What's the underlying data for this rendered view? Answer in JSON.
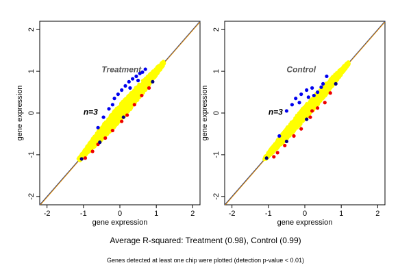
{
  "figure": {
    "caption": "Average R-squared: Treatment (0.98), Control (0.99)",
    "footnote": "Genes detected at least one chip were plotted (detection p-value < 0.01)"
  },
  "chart_data": [
    {
      "type": "scatter",
      "title": "Treatment",
      "annotation": "n=3",
      "xlabel": "gene expression",
      "ylabel": "gene expression",
      "xlim": [
        -2.2,
        2.2
      ],
      "ylim": [
        -2.2,
        2.2
      ],
      "xticks": [
        -2,
        -1,
        0,
        1,
        2
      ],
      "yticks": [
        -2,
        -1,
        0,
        1,
        2
      ],
      "grid": false,
      "diagonal_line": {
        "from": [
          -2.2,
          -2.2
        ],
        "to": [
          2.2,
          2.2
        ],
        "colors": [
          "#1f3a8a",
          "#e08a00"
        ]
      },
      "cloud": {
        "x_range": [
          -1.1,
          1.2
        ],
        "spread": 0.12
      },
      "series": [
        {
          "color": "#ffff00",
          "points": [
            [
              -1.0,
              -1.02
            ],
            [
              -0.9,
              -0.88
            ],
            [
              -0.8,
              -0.79
            ],
            [
              -0.7,
              -0.72
            ],
            [
              -0.6,
              -0.58
            ],
            [
              -0.5,
              -0.51
            ],
            [
              -0.4,
              -0.38
            ],
            [
              -0.3,
              -0.31
            ],
            [
              -0.2,
              -0.18
            ],
            [
              -0.1,
              -0.12
            ],
            [
              0.0,
              0.02
            ],
            [
              0.1,
              0.08
            ],
            [
              0.2,
              0.22
            ],
            [
              0.3,
              0.28
            ],
            [
              0.4,
              0.41
            ],
            [
              0.5,
              0.49
            ],
            [
              0.6,
              0.62
            ],
            [
              0.7,
              0.69
            ],
            [
              0.8,
              0.81
            ],
            [
              0.9,
              0.92
            ],
            [
              1.0,
              0.98
            ],
            [
              1.1,
              1.1
            ]
          ]
        },
        {
          "color": "#0000ee",
          "points": [
            [
              -0.15,
              0.35
            ],
            [
              0.05,
              0.55
            ],
            [
              0.25,
              0.75
            ],
            [
              0.45,
              0.88
            ],
            [
              0.55,
              0.95
            ],
            [
              0.35,
              0.82
            ],
            [
              -0.3,
              0.1
            ],
            [
              0.62,
              0.98
            ],
            [
              0.15,
              0.65
            ],
            [
              -0.45,
              -0.1
            ],
            [
              0.7,
              1.05
            ],
            [
              -0.6,
              -0.35
            ],
            [
              0.5,
              0.78
            ],
            [
              -0.05,
              0.45
            ],
            [
              0.28,
              0.6
            ],
            [
              -0.2,
              0.2
            ]
          ]
        },
        {
          "color": "#ee0000",
          "points": [
            [
              -0.95,
              -1.08
            ],
            [
              -0.6,
              -0.75
            ],
            [
              -0.4,
              -0.6
            ],
            [
              -0.2,
              -0.42
            ],
            [
              0.2,
              -0.05
            ],
            [
              0.4,
              0.2
            ],
            [
              0.6,
              0.42
            ],
            [
              -0.75,
              -0.92
            ],
            [
              0.05,
              -0.2
            ],
            [
              0.8,
              0.6
            ]
          ]
        },
        {
          "color": "#000080",
          "points": [
            [
              -1.05,
              -1.1
            ],
            [
              -0.55,
              -0.7
            ],
            [
              0.1,
              -0.1
            ],
            [
              0.9,
              0.75
            ]
          ]
        }
      ]
    },
    {
      "type": "scatter",
      "title": "Control",
      "annotation": "n=3",
      "xlabel": "gene expression",
      "ylabel": "gene expression",
      "xlim": [
        -2.2,
        2.2
      ],
      "ylim": [
        -2.2,
        2.2
      ],
      "xticks": [
        -2,
        -1,
        0,
        1,
        2
      ],
      "yticks": [
        -2,
        -1,
        0,
        1,
        2
      ],
      "grid": false,
      "diagonal_line": {
        "from": [
          -2.2,
          -2.2
        ],
        "to": [
          2.2,
          2.2
        ],
        "colors": [
          "#1f3a8a",
          "#e08a00"
        ]
      },
      "cloud": {
        "x_range": [
          -1.1,
          1.2
        ],
        "spread": 0.1
      },
      "series": [
        {
          "color": "#ffff00",
          "points": [
            [
              -1.0,
              -1.0
            ],
            [
              -0.9,
              -0.9
            ],
            [
              -0.8,
              -0.8
            ],
            [
              -0.7,
              -0.71
            ],
            [
              -0.6,
              -0.6
            ],
            [
              -0.5,
              -0.5
            ],
            [
              -0.4,
              -0.4
            ],
            [
              -0.3,
              -0.3
            ],
            [
              -0.2,
              -0.2
            ],
            [
              -0.1,
              -0.1
            ],
            [
              0.0,
              0.0
            ],
            [
              0.1,
              0.1
            ],
            [
              0.2,
              0.2
            ],
            [
              0.3,
              0.3
            ],
            [
              0.4,
              0.4
            ],
            [
              0.5,
              0.5
            ],
            [
              0.6,
              0.6
            ],
            [
              0.7,
              0.7
            ],
            [
              0.8,
              0.8
            ],
            [
              0.9,
              0.9
            ],
            [
              1.0,
              1.0
            ],
            [
              1.1,
              1.1
            ]
          ]
        },
        {
          "color": "#0000ee",
          "points": [
            [
              -0.25,
              0.35
            ],
            [
              -0.1,
              0.45
            ],
            [
              0.05,
              0.55
            ],
            [
              0.2,
              0.6
            ],
            [
              0.35,
              0.5
            ],
            [
              -0.35,
              0.2
            ],
            [
              0.1,
              0.38
            ],
            [
              -0.5,
              0.05
            ],
            [
              0.45,
              0.62
            ],
            [
              -0.15,
              0.25
            ],
            [
              0.5,
              0.7
            ],
            [
              -0.7,
              -0.55
            ],
            [
              0.6,
              0.88
            ],
            [
              0.25,
              0.42
            ]
          ]
        },
        {
          "color": "#ee0000",
          "points": [
            [
              -0.85,
              -1.05
            ],
            [
              -0.55,
              -0.78
            ],
            [
              -0.3,
              -0.55
            ],
            [
              0.15,
              -0.1
            ],
            [
              0.35,
              0.12
            ],
            [
              0.55,
              0.25
            ],
            [
              -0.75,
              -0.95
            ],
            [
              0.7,
              0.48
            ],
            [
              -0.1,
              -0.38
            ],
            [
              0.2,
              0.05
            ]
          ]
        },
        {
          "color": "#000080",
          "points": [
            [
              -1.05,
              -1.08
            ],
            [
              -0.5,
              -0.68
            ],
            [
              0.05,
              -0.15
            ],
            [
              0.85,
              0.7
            ]
          ]
        }
      ]
    }
  ]
}
